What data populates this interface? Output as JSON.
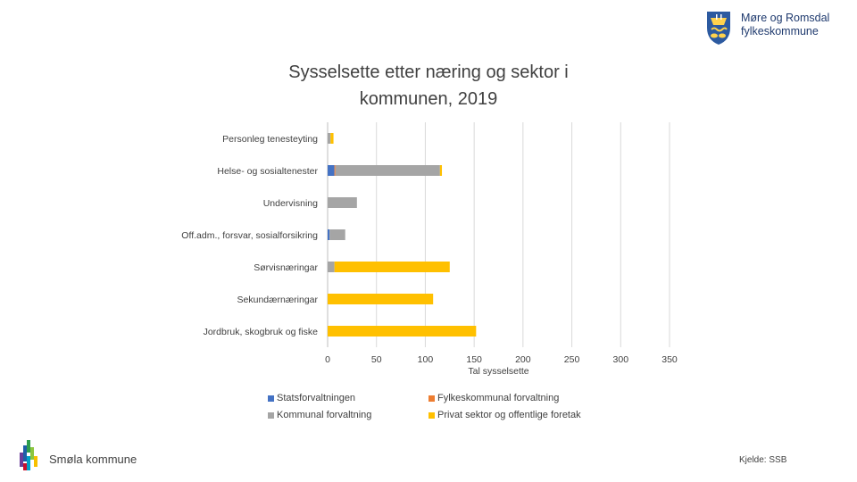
{
  "header": {
    "logo_line1": "Møre og Romsdal",
    "logo_line2": "fylkeskommune"
  },
  "footer": {
    "municipality": "Smøla kommune",
    "source": "Kjelde: SSB"
  },
  "chart_data": {
    "type": "bar",
    "orientation": "horizontal",
    "stacked": true,
    "title": "Sysselsette etter næring og sektor i kommunen, 2019",
    "xlabel": "Tal sysselsette",
    "ylabel": "",
    "xlim": [
      0,
      350
    ],
    "xticks": [
      0,
      50,
      100,
      150,
      200,
      250,
      300,
      350
    ],
    "grid": true,
    "legend_position": "bottom",
    "categories": [
      "Personleg tenesteyting",
      "Helse- og sosialtenester",
      "Undervisning",
      "Off.adm., forsvar, sosialforsikring",
      "Sørvisnæringar",
      "Sekundærnæringar",
      "Jordbruk, skogbruk og fiske"
    ],
    "series": [
      {
        "name": "Statsforvaltningen",
        "color": "#4472c4",
        "values": [
          0,
          7,
          0,
          2,
          0,
          0,
          0
        ]
      },
      {
        "name": "Fylkeskommunal forvaltning",
        "color": "#ed7d31",
        "values": [
          0,
          1,
          0,
          0,
          0,
          0,
          0
        ]
      },
      {
        "name": "Kommunal forvaltning",
        "color": "#a5a5a5",
        "values": [
          3,
          107,
          30,
          16,
          7,
          0,
          0
        ]
      },
      {
        "name": "Privat sektor og offentlige foretak",
        "color": "#ffc000",
        "values": [
          3,
          2,
          0,
          0,
          118,
          108,
          152
        ]
      }
    ]
  }
}
